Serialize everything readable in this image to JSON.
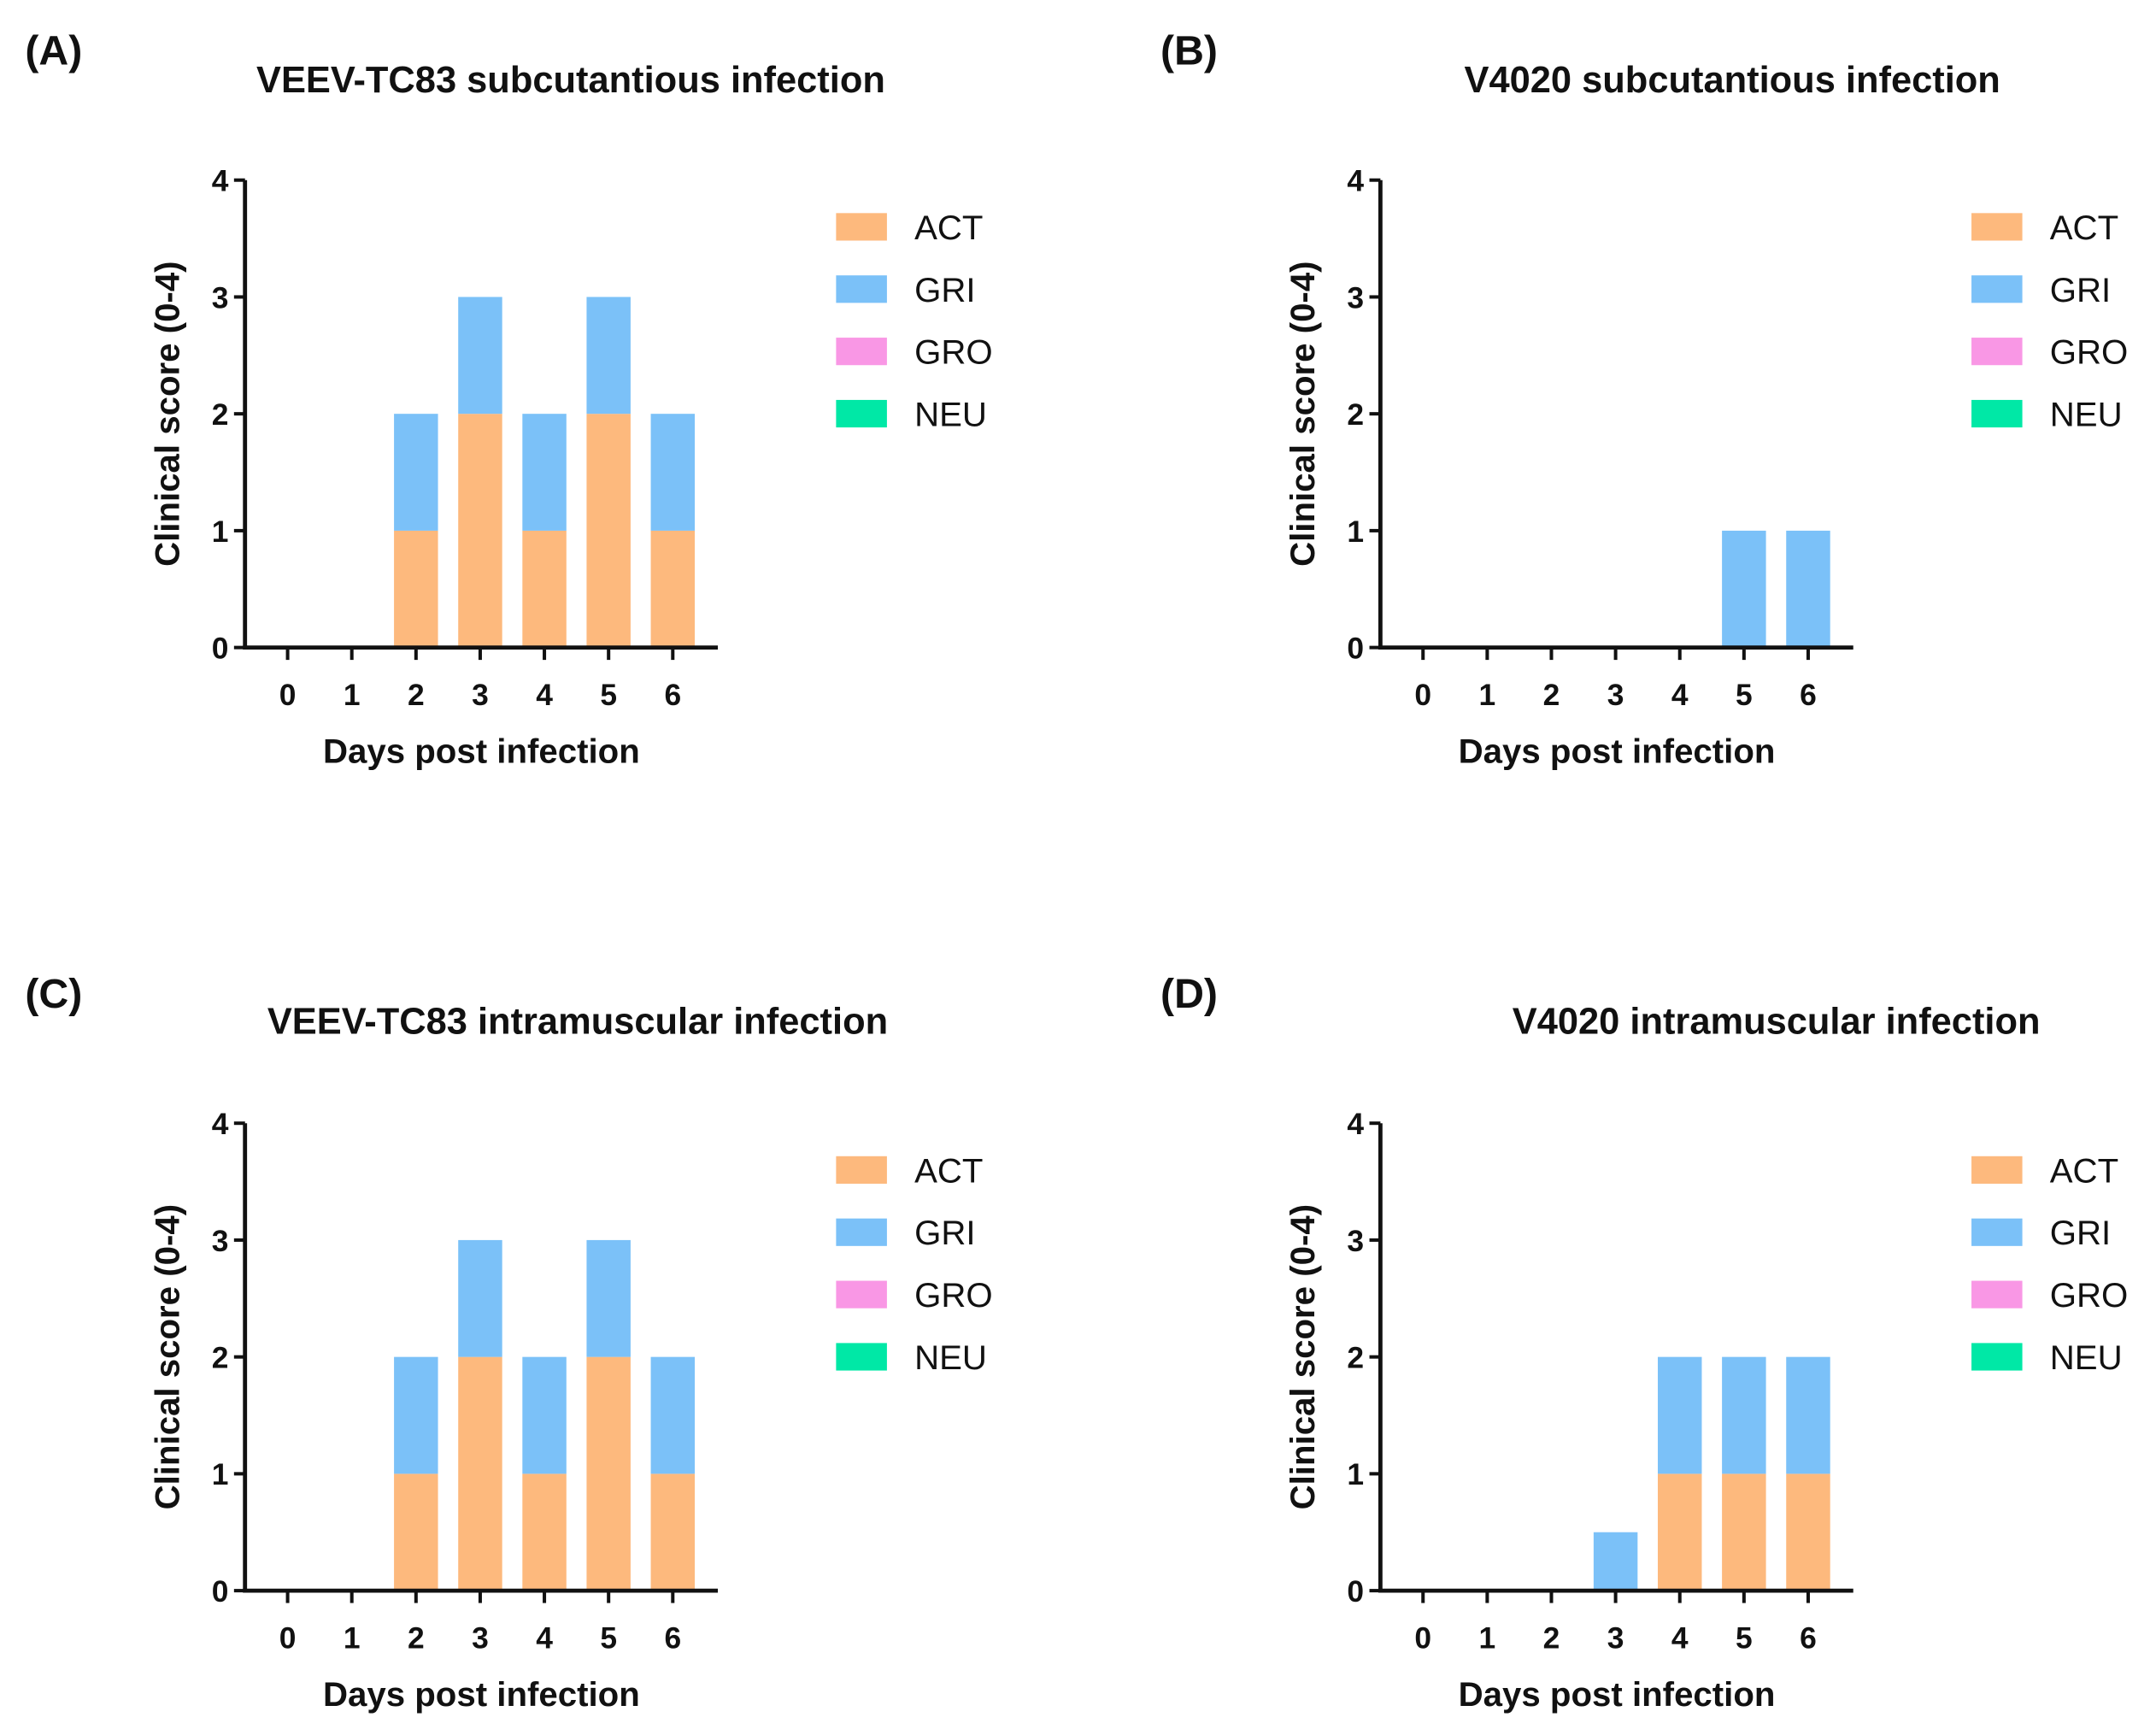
{
  "chart_data": [
    {
      "panel": "(A)",
      "type": "bar",
      "stacked": true,
      "title": "VEEV-TC83 subcutantious infection",
      "xlabel": "Days post infection",
      "ylabel": "Clinical score (0-4)",
      "categories": [
        "0",
        "1",
        "2",
        "3",
        "4",
        "5",
        "6"
      ],
      "ylim": [
        0,
        4
      ],
      "yticks": [
        "0",
        "1",
        "2",
        "3",
        "4"
      ],
      "legend_position": "right",
      "series": [
        {
          "name": "ACT",
          "color": "#FDB97D",
          "values": [
            0,
            0,
            1,
            2,
            1,
            2,
            1
          ]
        },
        {
          "name": "GRI",
          "color": "#7BC1F8",
          "values": [
            0,
            0,
            1,
            1,
            1,
            1,
            1
          ]
        },
        {
          "name": "GRO",
          "color": "#F997E5",
          "values": [
            0,
            0,
            0,
            0,
            0,
            0,
            0
          ]
        },
        {
          "name": "NEU",
          "color": "#00E8A6",
          "values": [
            0,
            0,
            0,
            0,
            0,
            0,
            0
          ]
        }
      ]
    },
    {
      "panel": "(B)",
      "type": "bar",
      "stacked": true,
      "title": "V4020 subcutantious infection",
      "xlabel": "Days post infection",
      "ylabel": "Clinical score (0-4)",
      "categories": [
        "0",
        "1",
        "2",
        "3",
        "4",
        "5",
        "6"
      ],
      "ylim": [
        0,
        4
      ],
      "yticks": [
        "0",
        "1",
        "2",
        "3",
        "4"
      ],
      "legend_position": "right",
      "series": [
        {
          "name": "ACT",
          "color": "#FDB97D",
          "values": [
            0,
            0,
            0,
            0,
            0,
            0,
            0
          ]
        },
        {
          "name": "GRI",
          "color": "#7BC1F8",
          "values": [
            0,
            0,
            0,
            0,
            0,
            1,
            1
          ]
        },
        {
          "name": "GRO",
          "color": "#F997E5",
          "values": [
            0,
            0,
            0,
            0,
            0,
            0,
            0
          ]
        },
        {
          "name": "NEU",
          "color": "#00E8A6",
          "values": [
            0,
            0,
            0,
            0,
            0,
            0,
            0
          ]
        }
      ]
    },
    {
      "panel": "(C)",
      "type": "bar",
      "stacked": true,
      "title": "VEEV-TC83 intramuscular infection",
      "xlabel": "Days post infection",
      "ylabel": "Clinical score (0-4)",
      "categories": [
        "0",
        "1",
        "2",
        "3",
        "4",
        "5",
        "6"
      ],
      "ylim": [
        0,
        4
      ],
      "yticks": [
        "0",
        "1",
        "2",
        "3",
        "4"
      ],
      "legend_position": "right",
      "series": [
        {
          "name": "ACT",
          "color": "#FDB97D",
          "values": [
            0,
            0,
            1,
            2,
            1,
            2,
            1
          ]
        },
        {
          "name": "GRI",
          "color": "#7BC1F8",
          "values": [
            0,
            0,
            1,
            1,
            1,
            1,
            1
          ]
        },
        {
          "name": "GRO",
          "color": "#F997E5",
          "values": [
            0,
            0,
            0,
            0,
            0,
            0,
            0
          ]
        },
        {
          "name": "NEU",
          "color": "#00E8A6",
          "values": [
            0,
            0,
            0,
            0,
            0,
            0,
            0
          ]
        }
      ]
    },
    {
      "panel": "(D)",
      "type": "bar",
      "stacked": true,
      "title": "V4020 intramuscular infection",
      "xlabel": "Days post infection",
      "ylabel": "Clinical score (0-4)",
      "categories": [
        "0",
        "1",
        "2",
        "3",
        "4",
        "5",
        "6"
      ],
      "ylim": [
        0,
        4
      ],
      "yticks": [
        "0",
        "1",
        "2",
        "3",
        "4"
      ],
      "legend_position": "right",
      "series": [
        {
          "name": "ACT",
          "color": "#FDB97D",
          "values": [
            0,
            0,
            0,
            0,
            1,
            1,
            1
          ]
        },
        {
          "name": "GRI",
          "color": "#7BC1F8",
          "values": [
            0,
            0,
            0,
            0.5,
            1,
            1,
            1
          ]
        },
        {
          "name": "GRO",
          "color": "#F997E5",
          "values": [
            0,
            0,
            0,
            0,
            0,
            0,
            0
          ]
        },
        {
          "name": "NEU",
          "color": "#00E8A6",
          "values": [
            0,
            0,
            0,
            0,
            0,
            0,
            0
          ]
        }
      ]
    }
  ]
}
